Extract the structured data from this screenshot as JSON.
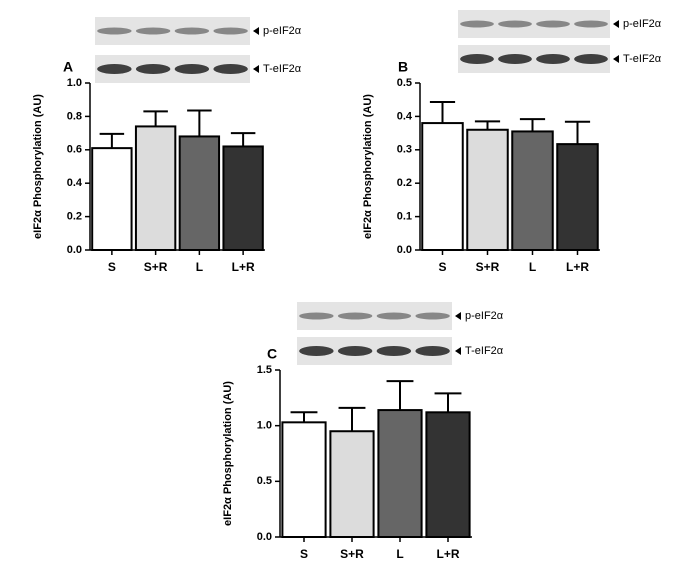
{
  "chart_data": [
    {
      "type": "bar",
      "panel": "A",
      "ylabel": "eIF2α Phosphorylation (AU)",
      "blot_labels": [
        "p-eIF2α",
        "T-eIF2α"
      ],
      "categories": [
        "S",
        "S+R",
        "L",
        "L+R"
      ],
      "values": [
        0.61,
        0.74,
        0.68,
        0.62
      ],
      "errors": [
        0.085,
        0.09,
        0.155,
        0.08
      ],
      "colors": [
        "#ffffff",
        "#dcdcdc",
        "#666666",
        "#333333"
      ],
      "ylim": [
        0,
        1.0
      ],
      "yticks": [
        {
          "value": 0,
          "label": "0.0"
        },
        0.2,
        0.4,
        0.6,
        0.8,
        {
          "value": 1.0,
          "label": "1.0"
        }
      ]
    },
    {
      "type": "bar",
      "panel": "B",
      "ylabel": "eIF2α Phosphorylation (AU)",
      "blot_labels": [
        "p-eIF2α",
        "T-eIF2α"
      ],
      "categories": [
        "S",
        "S+R",
        "L",
        "L+R"
      ],
      "values": [
        0.38,
        0.36,
        0.355,
        0.317
      ],
      "errors": [
        0.063,
        0.025,
        0.037,
        0.067
      ],
      "colors": [
        "#ffffff",
        "#dcdcdc",
        "#666666",
        "#333333"
      ],
      "ylim": [
        0,
        0.5
      ],
      "yticks": [
        {
          "value": 0,
          "label": "0.0"
        },
        0.1,
        0.2,
        0.3,
        0.4,
        0.5
      ]
    },
    {
      "type": "bar",
      "panel": "C",
      "ylabel": "eIF2α Phosphorylation (AU)",
      "blot_labels": [
        "p-eIF2α",
        "T-eIF2α"
      ],
      "categories": [
        "S",
        "S+R",
        "L",
        "L+R"
      ],
      "values": [
        1.03,
        0.95,
        1.14,
        1.12
      ],
      "errors": [
        0.09,
        0.21,
        0.26,
        0.17
      ],
      "colors": [
        "#ffffff",
        "#dcdcdc",
        "#666666",
        "#333333"
      ],
      "ylim": [
        0,
        1.5
      ],
      "yticks": [
        {
          "value": 0,
          "label": "0.0"
        },
        0.5,
        {
          "value": 1.0,
          "label": "1.0"
        },
        1.5
      ]
    }
  ]
}
